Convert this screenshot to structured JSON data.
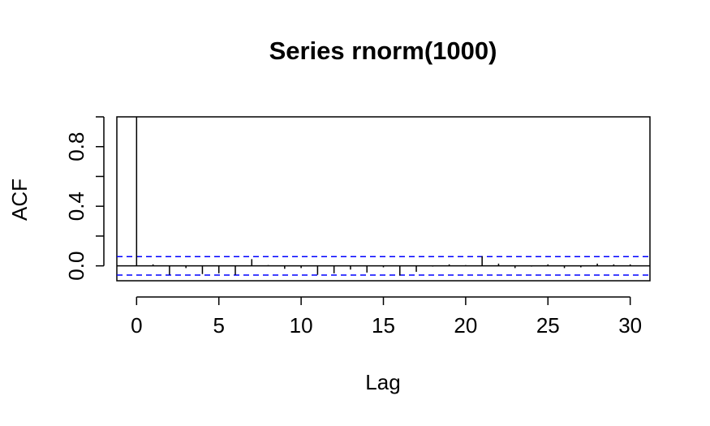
{
  "chart_data": {
    "type": "bar",
    "subtype": "acf",
    "title": "Series  rnorm(1000)",
    "xlabel": "Lag",
    "ylabel": "ACF",
    "xlim": [
      -1.2,
      31.2
    ],
    "ylim": [
      -0.1,
      1.0
    ],
    "x_ticks": [
      0,
      5,
      10,
      15,
      20,
      25,
      30
    ],
    "x_tick_labels": [
      "0",
      "5",
      "10",
      "15",
      "20",
      "25",
      "30"
    ],
    "y_ticks": [
      0.0,
      0.2,
      0.4,
      0.6,
      0.8,
      1.0
    ],
    "y_tick_labels": [
      "0.0",
      "",
      "0.4",
      "",
      "0.8",
      ""
    ],
    "lags": [
      0,
      1,
      2,
      3,
      4,
      5,
      6,
      7,
      8,
      9,
      10,
      11,
      12,
      13,
      14,
      15,
      16,
      17,
      18,
      19,
      20,
      21,
      22,
      23,
      24,
      25,
      26,
      27,
      28,
      29,
      30
    ],
    "acf": [
      1.0,
      0.01,
      -0.06,
      -0.015,
      -0.055,
      -0.05,
      -0.06,
      0.045,
      0.005,
      -0.02,
      -0.015,
      -0.06,
      -0.05,
      -0.025,
      -0.045,
      -0.01,
      -0.065,
      -0.04,
      -0.005,
      0.01,
      0.005,
      0.065,
      0.015,
      -0.015,
      -0.005,
      0.01,
      -0.015,
      -0.01,
      0.015,
      0.01,
      0.01
    ],
    "confidence_bound": 0.062,
    "confidence_color": "#0000ff",
    "bar_color": "#000000",
    "grid": false,
    "legend": "none"
  }
}
